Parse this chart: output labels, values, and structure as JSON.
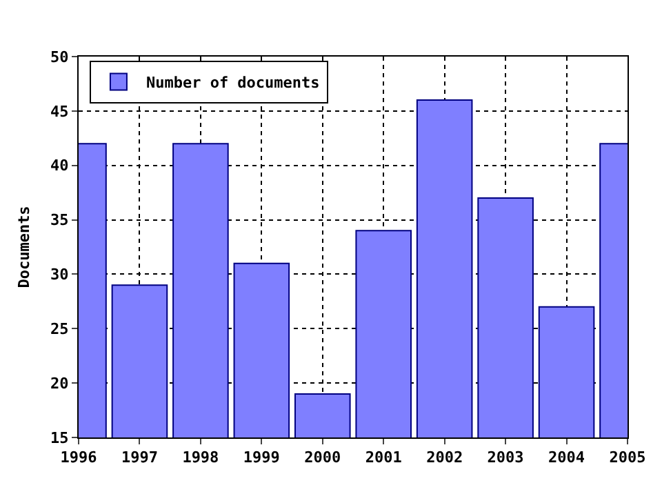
{
  "chart_data": {
    "type": "bar",
    "ylabel": "Documents",
    "x": [
      1996,
      1997,
      1998,
      1999,
      2000,
      2001,
      2002,
      2003,
      2004,
      2005
    ],
    "series": [
      {
        "name": "Number of documents",
        "color": "#7f7fff",
        "values": [
          42,
          29,
          42,
          31,
          19,
          34,
          46,
          37,
          27,
          42
        ]
      }
    ],
    "xlim": [
      1996,
      2005
    ],
    "xticks": [
      1996,
      1997,
      1998,
      1999,
      2000,
      2001,
      2002,
      2003,
      2004,
      2005
    ],
    "ylim": [
      15,
      50
    ],
    "yticks": [
      15,
      20,
      25,
      30,
      35,
      40,
      45,
      50
    ],
    "grid": true,
    "legend": "top left"
  }
}
